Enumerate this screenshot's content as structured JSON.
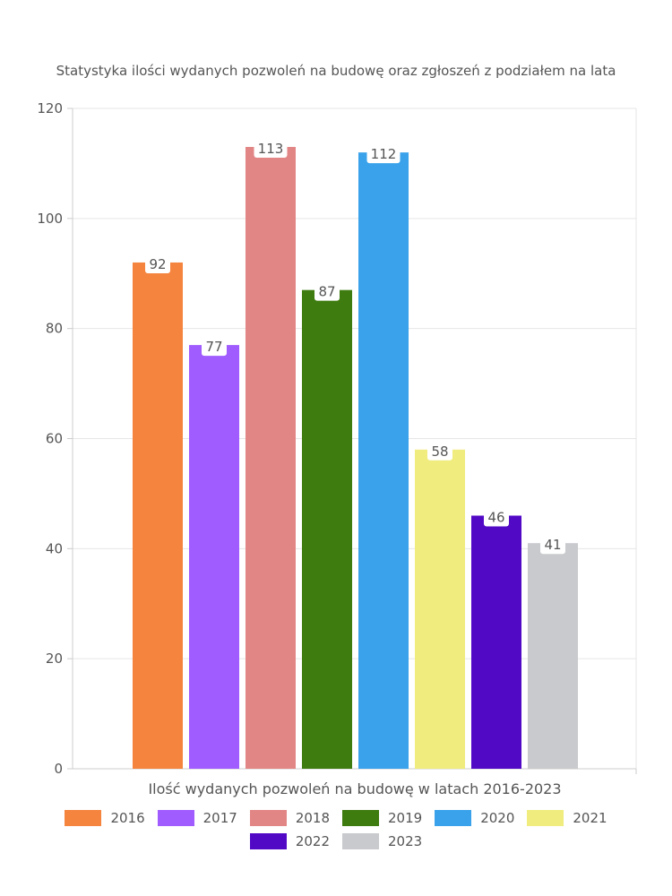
{
  "chart_data": {
    "type": "bar",
    "title": "Statystyka ilości wydanych pozwoleń na budowę oraz zgłoszeń z podziałem na lata",
    "xlabel": "Ilość wydanych pozwoleń na budowę w latach 2016-2023",
    "ylabel": "",
    "ylim": [
      0,
      120
    ],
    "yticks": [
      0,
      20,
      40,
      60,
      80,
      100,
      120
    ],
    "grid": true,
    "legend_position": "bottom",
    "data_labels": true,
    "categories": [
      "2016",
      "2017",
      "2018",
      "2019",
      "2020",
      "2021",
      "2022",
      "2023"
    ],
    "values": [
      92,
      77,
      113,
      87,
      112,
      58,
      46,
      41
    ],
    "colors": [
      "#f5843f",
      "#a05cff",
      "#e28585",
      "#3e7c0f",
      "#3aa2ea",
      "#f0ec7e",
      "#5209c6",
      "#c9cacd"
    ]
  }
}
